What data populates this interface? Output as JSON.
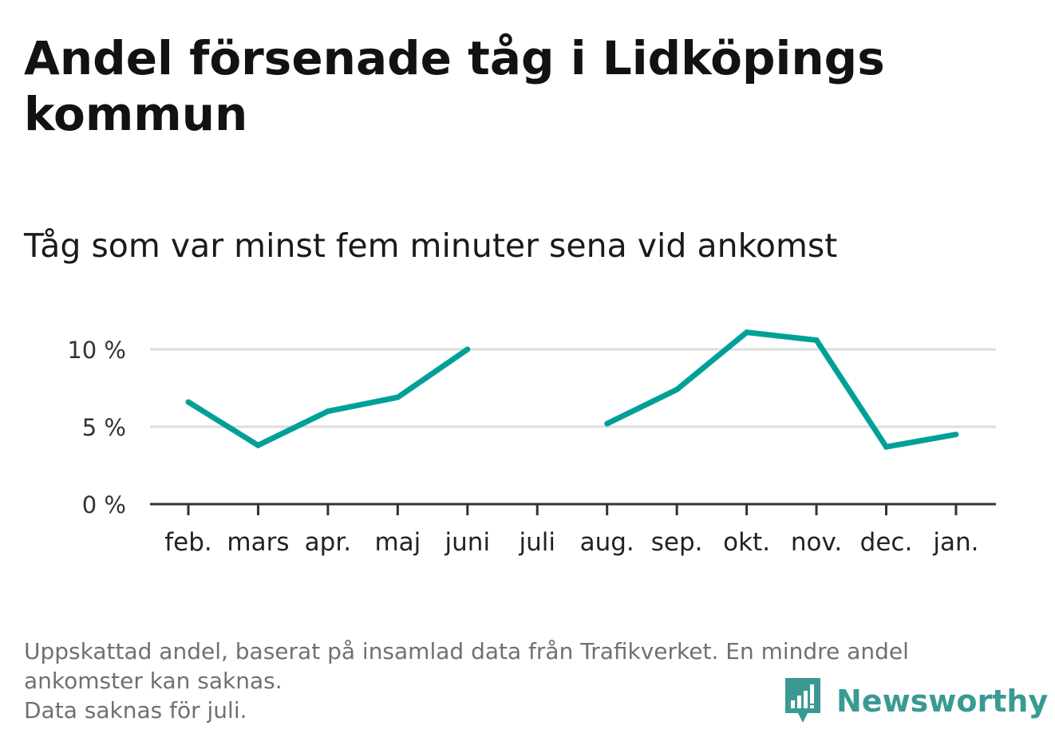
{
  "title": "Andel försenade tåg i Lidköpings kommun",
  "subtitle": "Tåg som var minst fem minuter sena vid ankomst",
  "footnote": {
    "line1": "Uppskattad andel, baserat på insamlad data från Trafikverket. En mindre andel",
    "line2": "ankomster kan saknas.",
    "line3": "Data saknas för juli."
  },
  "brand": {
    "name": "Newsworthy",
    "color": "#3a9a93"
  },
  "colors": {
    "line": "#00a099",
    "grid": "#dddddd",
    "axis": "#333333"
  },
  "chart_data": {
    "type": "line",
    "categories": [
      "feb.",
      "mars",
      "apr.",
      "maj",
      "juni",
      "juli",
      "aug.",
      "sep.",
      "okt.",
      "nov.",
      "dec.",
      "jan."
    ],
    "values": [
      6.6,
      3.8,
      6.0,
      6.9,
      10.0,
      null,
      5.2,
      7.4,
      11.1,
      10.6,
      3.7,
      4.5
    ],
    "yticks": [
      {
        "value": 0,
        "label": "0 %"
      },
      {
        "value": 5,
        "label": "5 %"
      },
      {
        "value": 10,
        "label": "10 %"
      }
    ],
    "ylim": [
      0,
      12
    ],
    "grid": true,
    "legend": "none"
  }
}
